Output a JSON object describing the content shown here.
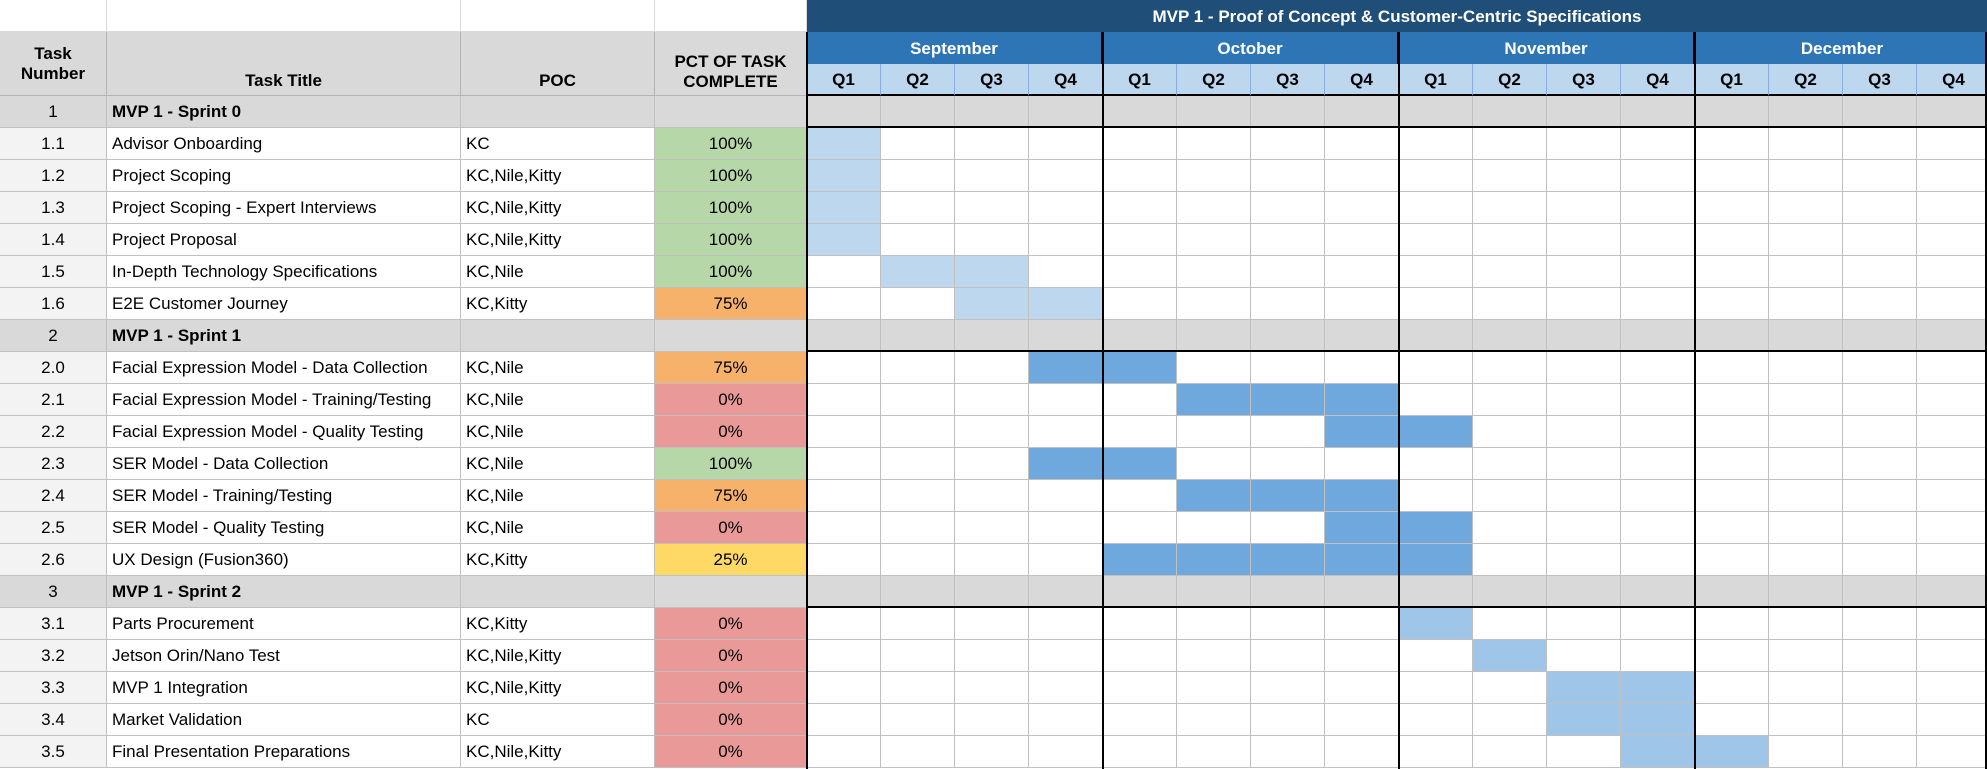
{
  "sheet": {
    "headers": {
      "task_number": "Task Number",
      "task_title": "Task Title",
      "poc": "POC",
      "pct": "PCT OF TASK COMPLETE"
    },
    "phase_title": "MVP 1 - Proof of Concept & Customer-Centric Specifications",
    "months": [
      "September",
      "October",
      "November",
      "December"
    ],
    "quarters": [
      "Q1",
      "Q2",
      "Q3",
      "Q4"
    ],
    "colors": {
      "pct_100": "#b6d7a8",
      "pct_75": "#f6b26b",
      "pct_25": "#ffd966",
      "pct_0": "#ea9999",
      "bar_light": "#bdd7ee",
      "bar_dark": "#6fa8dc",
      "bar_sprint2": "#9fc5e8",
      "section_fill": "#d9d9d9",
      "phase_header": "#1f4e79",
      "month_header": "#2e75b6"
    },
    "rows": [
      {
        "num": "1",
        "title": "MVP 1 - Sprint 0",
        "poc": "",
        "pct": "",
        "section": true,
        "bars": []
      },
      {
        "num": "1.1",
        "title": "Advisor Onboarding",
        "poc": "KC",
        "pct": "100%",
        "pct_color": "pct_100",
        "bar": "bar_light",
        "bars": [
          0
        ]
      },
      {
        "num": "1.2",
        "title": "Project Scoping",
        "poc": "KC,Nile,Kitty",
        "pct": "100%",
        "pct_color": "pct_100",
        "bar": "bar_light",
        "bars": [
          0
        ]
      },
      {
        "num": "1.3",
        "title": "Project Scoping - Expert Interviews",
        "poc": "KC,Nile,Kitty",
        "pct": "100%",
        "pct_color": "pct_100",
        "bar": "bar_light",
        "bars": [
          0
        ]
      },
      {
        "num": "1.4",
        "title": "Project Proposal",
        "poc": "KC,Nile,Kitty",
        "pct": "100%",
        "pct_color": "pct_100",
        "bar": "bar_light",
        "bars": [
          0
        ]
      },
      {
        "num": "1.5",
        "title": "In-Depth Technology Specifications",
        "poc": "KC,Nile",
        "pct": "100%",
        "pct_color": "pct_100",
        "bar": "bar_light",
        "bars": [
          1,
          2
        ]
      },
      {
        "num": "1.6",
        "title": "E2E Customer Journey",
        "poc": "KC,Kitty",
        "pct": "75%",
        "pct_color": "pct_75",
        "bar": "bar_light",
        "bars": [
          2,
          3
        ]
      },
      {
        "num": "2",
        "title": "MVP 1 - Sprint 1",
        "poc": "",
        "pct": "",
        "section": true,
        "bars": []
      },
      {
        "num": "2.0",
        "title": "Facial Expression Model - Data Collection",
        "poc": "KC,Nile",
        "pct": "75%",
        "pct_color": "pct_75",
        "bar": "bar_dark",
        "bars": [
          3,
          4
        ]
      },
      {
        "num": "2.1",
        "title": "Facial Expression Model - Training/Testing",
        "poc": "KC,Nile",
        "pct": "0%",
        "pct_color": "pct_0",
        "bar": "bar_dark",
        "bars": [
          5,
          6,
          7
        ]
      },
      {
        "num": "2.2",
        "title": "Facial Expression Model - Quality Testing",
        "poc": "KC,Nile",
        "pct": "0%",
        "pct_color": "pct_0",
        "bar": "bar_dark",
        "bars": [
          7,
          8
        ]
      },
      {
        "num": "2.3",
        "title": "SER Model - Data Collection",
        "poc": "KC,Nile",
        "pct": "100%",
        "pct_color": "pct_100",
        "bar": "bar_dark",
        "bars": [
          3,
          4
        ]
      },
      {
        "num": "2.4",
        "title": "SER Model - Training/Testing",
        "poc": "KC,Nile",
        "pct": "75%",
        "pct_color": "pct_75",
        "bar": "bar_dark",
        "bars": [
          5,
          6,
          7
        ]
      },
      {
        "num": "2.5",
        "title": "SER Model - Quality Testing",
        "poc": "KC,Nile",
        "pct": "0%",
        "pct_color": "pct_0",
        "bar": "bar_dark",
        "bars": [
          7,
          8
        ]
      },
      {
        "num": "2.6",
        "title": "UX Design (Fusion360)",
        "poc": "KC,Kitty",
        "pct": "25%",
        "pct_color": "pct_25",
        "bar": "bar_dark",
        "bars": [
          4,
          5,
          6,
          7,
          8
        ]
      },
      {
        "num": "3",
        "title": "MVP 1 - Sprint 2",
        "poc": "",
        "pct": "",
        "section": true,
        "bars": []
      },
      {
        "num": "3.1",
        "title": "Parts Procurement",
        "poc": "KC,Kitty",
        "pct": "0%",
        "pct_color": "pct_0",
        "bar": "bar_sprint2",
        "bars": [
          8
        ]
      },
      {
        "num": "3.2",
        "title": "Jetson Orin/Nano Test",
        "poc": "KC,Nile,Kitty",
        "pct": "0%",
        "pct_color": "pct_0",
        "bar": "bar_sprint2",
        "bars": [
          9
        ]
      },
      {
        "num": "3.3",
        "title": "MVP 1 Integration",
        "poc": "KC,Nile,Kitty",
        "pct": "0%",
        "pct_color": "pct_0",
        "bar": "bar_sprint2",
        "bars": [
          10,
          11
        ]
      },
      {
        "num": "3.4",
        "title": "Market Validation",
        "poc": "KC",
        "pct": "0%",
        "pct_color": "pct_0",
        "bar": "bar_sprint2",
        "bars": [
          10,
          11
        ]
      },
      {
        "num": "3.5",
        "title": "Final Presentation Preparations",
        "poc": "KC,Nile,Kitty",
        "pct": "0%",
        "pct_color": "pct_0",
        "bar": "bar_sprint2",
        "bars": [
          11,
          12
        ]
      }
    ]
  }
}
